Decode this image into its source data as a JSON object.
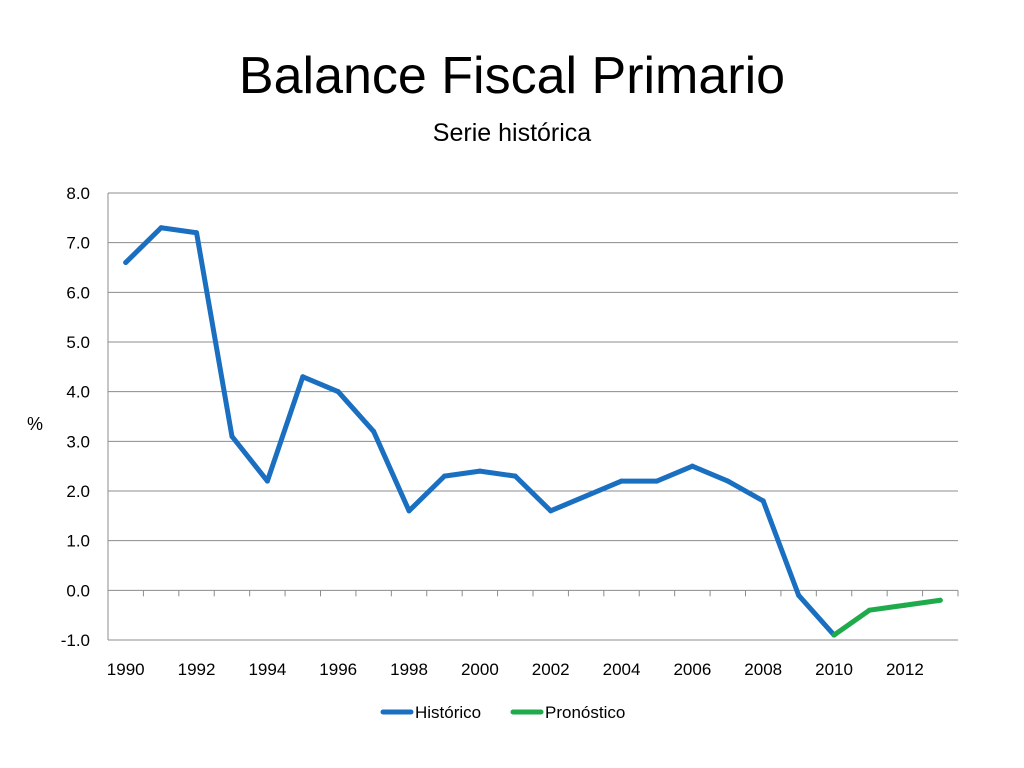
{
  "title": "Balance Fiscal Primario",
  "subtitle": "Serie histórica",
  "chart_data": {
    "type": "line",
    "title": "Balance Fiscal Primario",
    "subtitle": "Serie histórica",
    "xlabel": "",
    "ylabel": "%",
    "ylim": [
      -1.0,
      8.0
    ],
    "xlim": [
      1990,
      2013
    ],
    "y_ticks": [
      "8.0",
      "7.0",
      "6.0",
      "5.0",
      "4.0",
      "3.0",
      "2.0",
      "1.0",
      "0.0",
      "-1.0"
    ],
    "x_tick_labels": [
      "1990",
      "1992",
      "1994",
      "1996",
      "1998",
      "2000",
      "2002",
      "2004",
      "2006",
      "2008",
      "2010",
      "2012"
    ],
    "grid": "horizontal",
    "legend_position": "bottom",
    "series": [
      {
        "name": "Histórico",
        "color": "#1a6fc0",
        "points": [
          [
            1990,
            6.6
          ],
          [
            1991,
            7.3
          ],
          [
            1992,
            7.2
          ],
          [
            1993,
            3.1
          ],
          [
            1994,
            2.2
          ],
          [
            1995,
            4.3
          ],
          [
            1996,
            4.0
          ],
          [
            1997,
            3.2
          ],
          [
            1998,
            1.6
          ],
          [
            1999,
            2.3
          ],
          [
            2000,
            2.4
          ],
          [
            2001,
            2.3
          ],
          [
            2002,
            1.6
          ],
          [
            2003,
            1.9
          ],
          [
            2004,
            2.2
          ],
          [
            2005,
            2.2
          ],
          [
            2006,
            2.5
          ],
          [
            2007,
            2.2
          ],
          [
            2008,
            1.8
          ],
          [
            2009,
            -0.1
          ],
          [
            2010,
            -0.9
          ]
        ]
      },
      {
        "name": "Pronóstico",
        "color": "#1faa4b",
        "points": [
          [
            2010,
            -0.9
          ],
          [
            2011,
            -0.4
          ],
          [
            2012,
            -0.3
          ],
          [
            2013,
            -0.2
          ]
        ]
      }
    ]
  }
}
